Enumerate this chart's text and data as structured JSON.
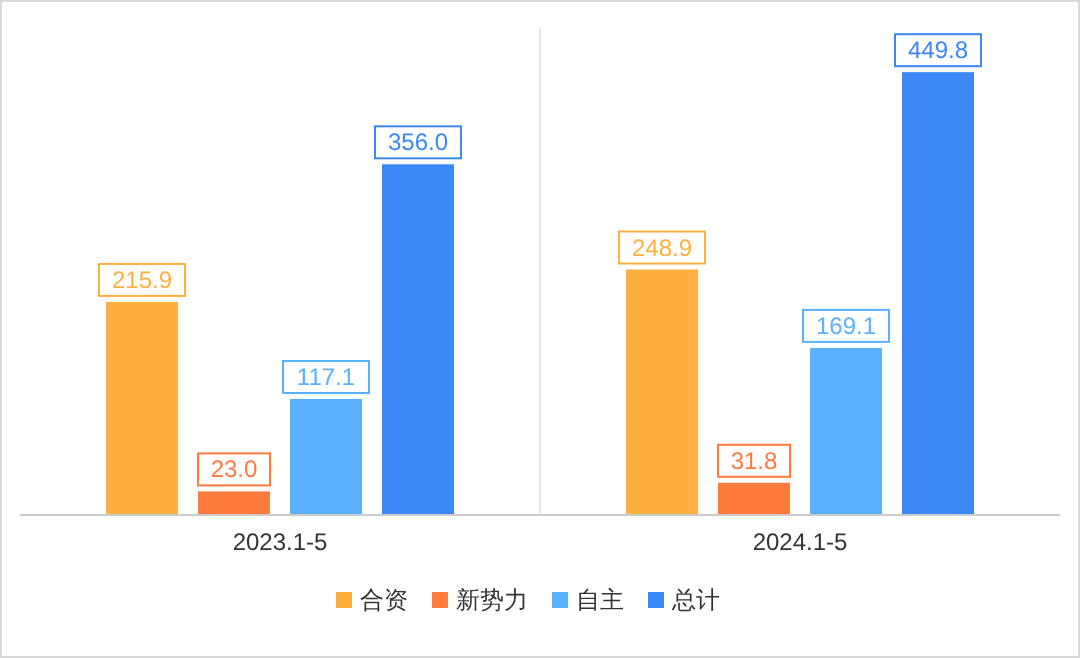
{
  "chart_data": {
    "type": "bar",
    "categories": [
      "2023.1-5",
      "2024.1-5"
    ],
    "series": [
      {
        "name": "合资",
        "color": "#ffb03f",
        "values": [
          215.9,
          248.9
        ],
        "value_labels": [
          "215.9",
          "248.9"
        ]
      },
      {
        "name": "新势力",
        "color": "#ff7a3d",
        "values": [
          23.0,
          31.8
        ],
        "value_labels": [
          "23.0",
          "31.8"
        ]
      },
      {
        "name": "自主",
        "color": "#5ab1ff",
        "values": [
          117.1,
          169.1
        ],
        "value_labels": [
          "117.1",
          "169.1"
        ]
      },
      {
        "name": "总计",
        "color": "#3a87f5",
        "values": [
          356.0,
          449.8
        ],
        "value_labels": [
          "356.0",
          "449.8"
        ]
      }
    ],
    "legend": "bottom",
    "grid": "x"
  }
}
